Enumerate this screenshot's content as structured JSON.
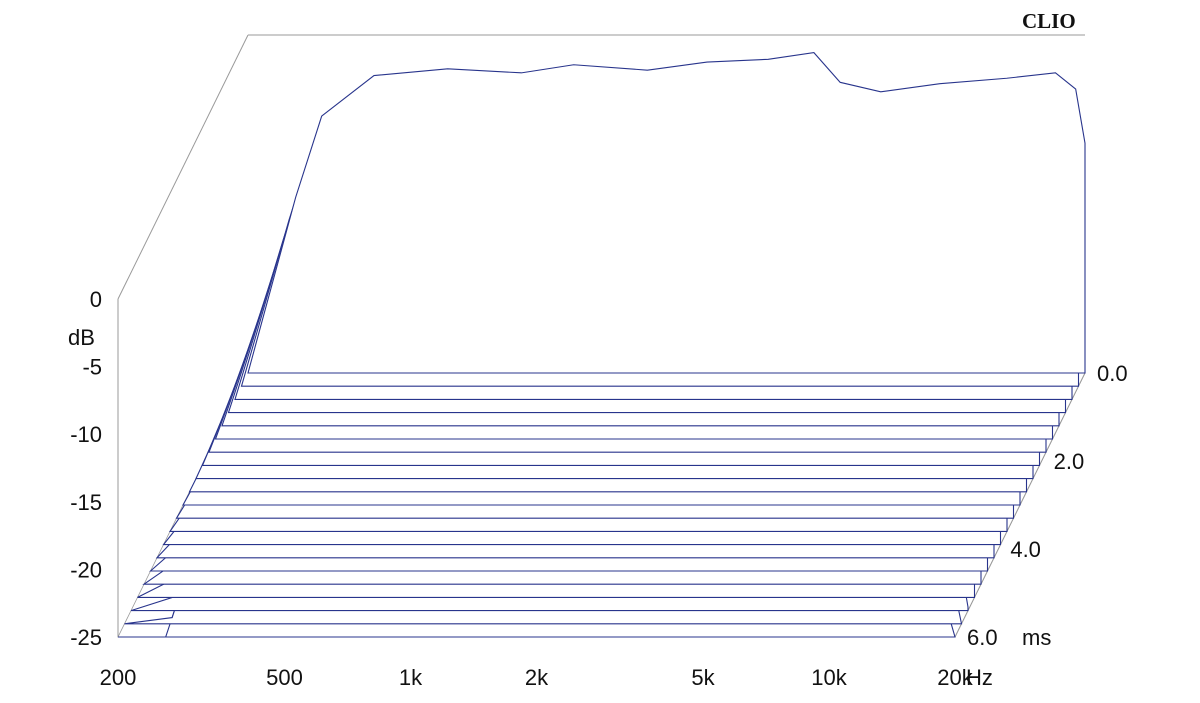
{
  "brand": "CLIO",
  "colors": {
    "trace": "#28348c",
    "frame": "#9a9a9a",
    "text": "#111111"
  },
  "chart_data": {
    "type": "waterfall",
    "y_axis": {
      "label": "dB",
      "range": [
        -25,
        0
      ],
      "ticks": [
        {
          "value": 0,
          "label": "0"
        },
        {
          "value": -5,
          "label": "-5"
        },
        {
          "value": -10,
          "label": "-10"
        },
        {
          "value": -15,
          "label": "-15"
        },
        {
          "value": -20,
          "label": "-20"
        },
        {
          "value": -25,
          "label": "-25"
        }
      ]
    },
    "x_axis": {
      "unit": "Hz",
      "scale": "log",
      "range": [
        200,
        20000
      ],
      "ticks": [
        {
          "value": 200,
          "label": "200"
        },
        {
          "value": 500,
          "label": "500"
        },
        {
          "value": 1000,
          "label": "1k"
        },
        {
          "value": 2000,
          "label": "2k"
        },
        {
          "value": 5000,
          "label": "5k"
        },
        {
          "value": 10000,
          "label": "10k"
        },
        {
          "value": 20000,
          "label": "20k"
        }
      ]
    },
    "z_axis": {
      "unit": "ms",
      "range": [
        0,
        6
      ],
      "ticks": [
        {
          "value": 0,
          "label": "0.0"
        },
        {
          "value": 2,
          "label": "2.0"
        },
        {
          "value": 4,
          "label": "4.0"
        },
        {
          "value": 6,
          "label": "6.0"
        }
      ]
    },
    "slices_ms": [
      0.0,
      0.3,
      0.6,
      0.9,
      1.2,
      1.5,
      1.8,
      2.1,
      2.4,
      2.7,
      3.0,
      3.3,
      3.6,
      3.9,
      4.2,
      4.5,
      4.8,
      5.1,
      5.4,
      5.7,
      6.0
    ],
    "series": [
      {
        "time_ms": 0.0,
        "points": [
          {
            "f": 200,
            "db": -25
          },
          {
            "f": 260,
            "db": -12
          },
          {
            "f": 300,
            "db": -6
          },
          {
            "f": 400,
            "db": -3
          },
          {
            "f": 600,
            "db": -2.5
          },
          {
            "f": 900,
            "db": -2.8
          },
          {
            "f": 1200,
            "db": -2.2
          },
          {
            "f": 1800,
            "db": -2.6
          },
          {
            "f": 2500,
            "db": -2.0
          },
          {
            "f": 3500,
            "db": -1.8
          },
          {
            "f": 4500,
            "db": -1.3
          },
          {
            "f": 5200,
            "db": -3.5
          },
          {
            "f": 6500,
            "db": -4.2
          },
          {
            "f": 9000,
            "db": -3.6
          },
          {
            "f": 13000,
            "db": -3.2
          },
          {
            "f": 17000,
            "db": -2.8
          },
          {
            "f": 19000,
            "db": -4.0
          },
          {
            "f": 20000,
            "db": -8
          }
        ]
      }
    ]
  }
}
